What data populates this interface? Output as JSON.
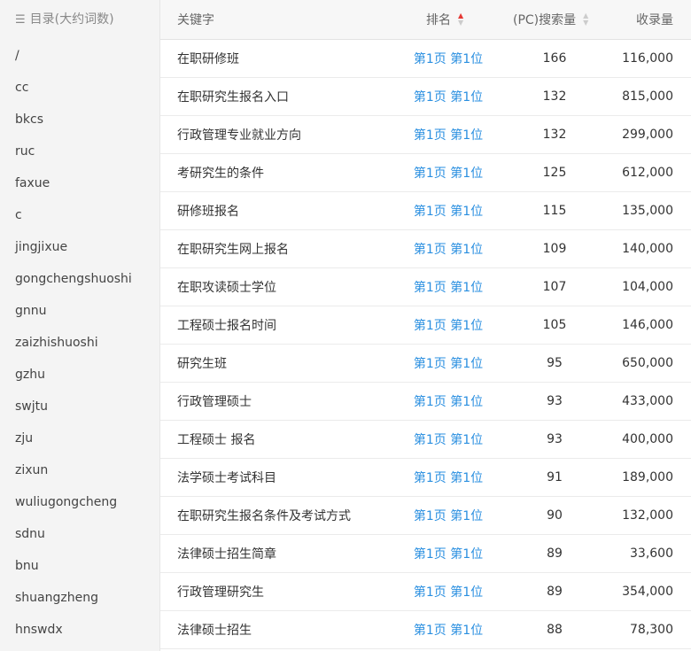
{
  "sidebar": {
    "title": "目录(大约词数)",
    "items": [
      "/",
      "cc",
      "bkcs",
      "ruc",
      "faxue",
      "c",
      "jingjixue",
      "gongchengshuoshi",
      "gnnu",
      "zaizhishuoshi",
      "gzhu",
      "swjtu",
      "zju",
      "zixun",
      "wuliugongcheng",
      "sdnu",
      "bnu",
      "shuangzheng",
      "hnswdx"
    ]
  },
  "table": {
    "headers": {
      "keyword": "关键字",
      "rank": "排名",
      "pc": "(PC)搜索量",
      "index": "收录量"
    },
    "sort_active_color": "#e53935",
    "rows": [
      {
        "keyword": "在职研修班",
        "rank": "第1页 第1位",
        "pc": "166",
        "index": "116,000"
      },
      {
        "keyword": "在职研究生报名入口",
        "rank": "第1页 第1位",
        "pc": "132",
        "index": "815,000"
      },
      {
        "keyword": "行政管理专业就业方向",
        "rank": "第1页 第1位",
        "pc": "132",
        "index": "299,000"
      },
      {
        "keyword": "考研究生的条件",
        "rank": "第1页 第1位",
        "pc": "125",
        "index": "612,000"
      },
      {
        "keyword": "研修班报名",
        "rank": "第1页 第1位",
        "pc": "115",
        "index": "135,000"
      },
      {
        "keyword": "在职研究生网上报名",
        "rank": "第1页 第1位",
        "pc": "109",
        "index": "140,000"
      },
      {
        "keyword": "在职攻读硕士学位",
        "rank": "第1页 第1位",
        "pc": "107",
        "index": "104,000"
      },
      {
        "keyword": "工程硕士报名时间",
        "rank": "第1页 第1位",
        "pc": "105",
        "index": "146,000"
      },
      {
        "keyword": "研究生班",
        "rank": "第1页 第1位",
        "pc": "95",
        "index": "650,000"
      },
      {
        "keyword": "行政管理硕士",
        "rank": "第1页 第1位",
        "pc": "93",
        "index": "433,000"
      },
      {
        "keyword": "工程硕士 报名",
        "rank": "第1页 第1位",
        "pc": "93",
        "index": "400,000"
      },
      {
        "keyword": "法学硕士考试科目",
        "rank": "第1页 第1位",
        "pc": "91",
        "index": "189,000"
      },
      {
        "keyword": "在职研究生报名条件及考试方式",
        "rank": "第1页 第1位",
        "pc": "90",
        "index": "132,000"
      },
      {
        "keyword": "法律硕士招生简章",
        "rank": "第1页 第1位",
        "pc": "89",
        "index": "33,600"
      },
      {
        "keyword": "行政管理研究生",
        "rank": "第1页 第1位",
        "pc": "89",
        "index": "354,000"
      },
      {
        "keyword": "法律硕士招生",
        "rank": "第1页 第1位",
        "pc": "88",
        "index": "78,300"
      }
    ]
  }
}
